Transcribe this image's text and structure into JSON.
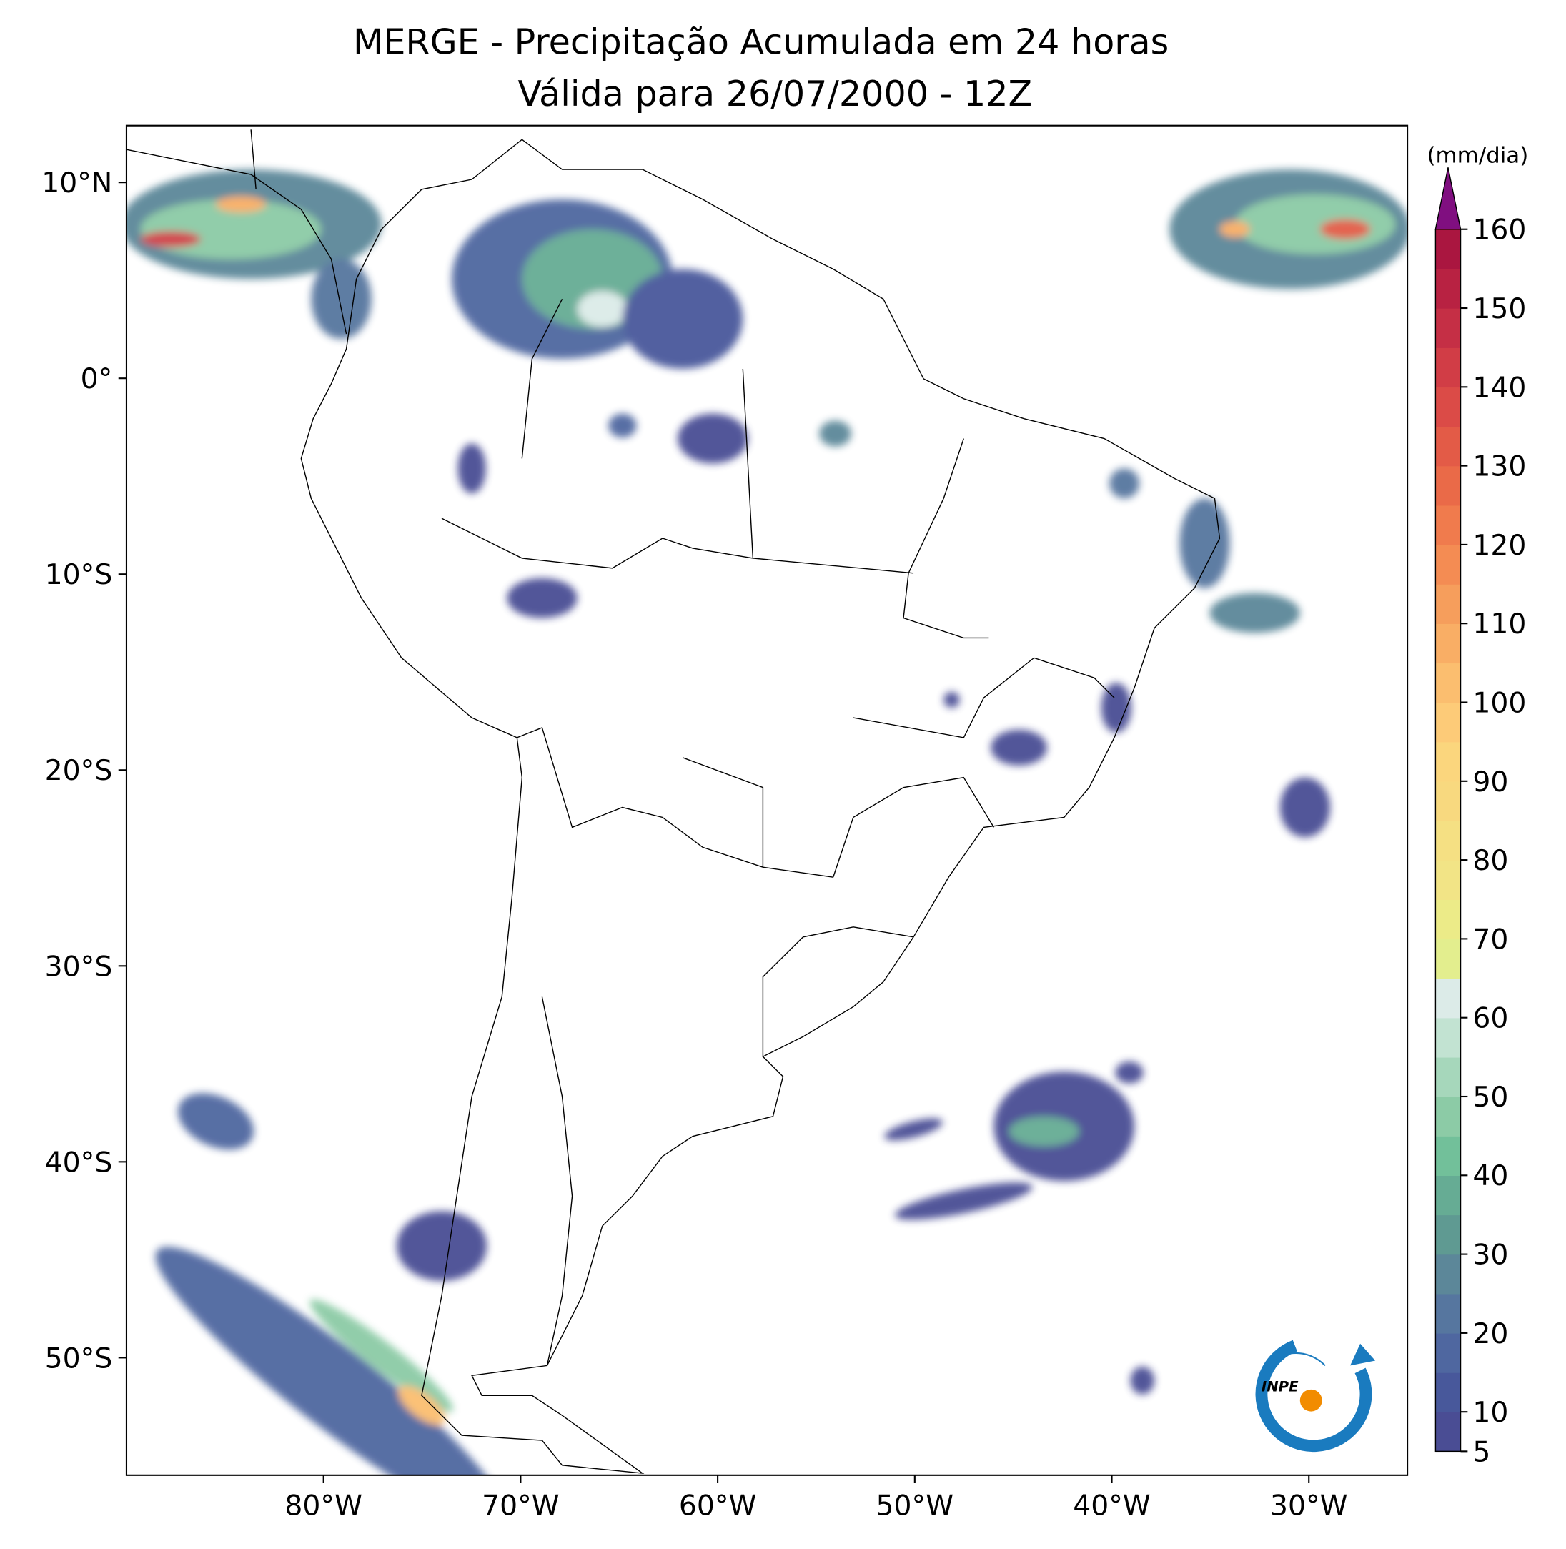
{
  "header": {
    "title": "MERGE - Precipitação Acumulada em 24 horas",
    "subtitle": "Válida para 26/07/2000 - 12Z"
  },
  "map": {
    "xlim": [
      -90,
      -25
    ],
    "ylim": [
      -56,
      12.9
    ],
    "xticks": [
      {
        "value": -80,
        "label": "80°W"
      },
      {
        "value": -70,
        "label": "70°W"
      },
      {
        "value": -60,
        "label": "60°W"
      },
      {
        "value": -50,
        "label": "50°W"
      },
      {
        "value": -40,
        "label": "40°W"
      },
      {
        "value": -30,
        "label": "30°W"
      }
    ],
    "yticks": [
      {
        "value": 10,
        "label": "10°N"
      },
      {
        "value": 0,
        "label": "0°"
      },
      {
        "value": -10,
        "label": "10°S"
      },
      {
        "value": -20,
        "label": "20°S"
      },
      {
        "value": -30,
        "label": "30°S"
      },
      {
        "value": -40,
        "label": "40°S"
      },
      {
        "value": -50,
        "label": "50°S"
      }
    ]
  },
  "colorbar": {
    "label": "(mm/dia)",
    "lim": [
      5,
      160
    ],
    "ticks": [
      5,
      10,
      20,
      30,
      40,
      50,
      60,
      70,
      80,
      90,
      100,
      110,
      120,
      130,
      140,
      150,
      160
    ],
    "colors": [
      "#4a4d94",
      "#48589b",
      "#4f67a0",
      "#56769f",
      "#5c8799",
      "#5f9a92",
      "#66ac94",
      "#72c09a",
      "#8ccba6",
      "#a6d7bb",
      "#c2e3d2",
      "#dcebe8",
      "#e3ee8e",
      "#eceb88",
      "#f2e486",
      "#f5e083",
      "#f8d97f",
      "#fbd67d",
      "#fdcb78",
      "#fbbe6f",
      "#f9ae65",
      "#f69e5c",
      "#f48c53",
      "#f07b4d",
      "#ea6a48",
      "#e35b47",
      "#db4b47",
      "#d13d46",
      "#c52f45",
      "#b82242",
      "#aa1640"
    ],
    "extend_color": "#800f80"
  },
  "logo": {
    "text": "INPE"
  }
}
